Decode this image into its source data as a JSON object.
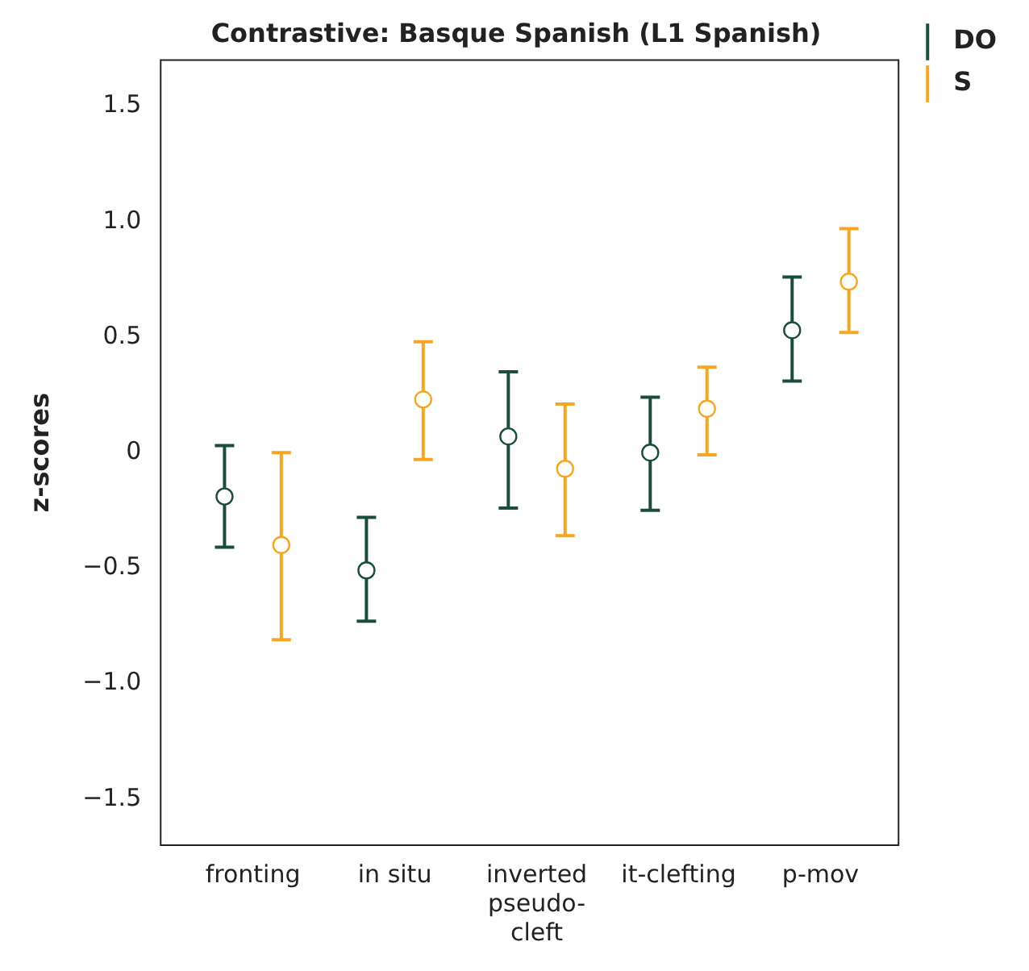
{
  "chart_data": {
    "type": "scatter",
    "title": "Contrastive: Basque Spanish (L1 Spanish)",
    "ylabel": "z-scores",
    "categories": [
      "fronting",
      "in situ",
      "inverted pseudo-cleft",
      "it-clefting",
      "p-mov"
    ],
    "series": [
      {
        "name": "DO",
        "color": "#1b4d3e",
        "values": [
          -0.19,
          -0.51,
          0.07,
          0.0,
          0.53
        ],
        "errors": [
          [
            -0.41,
            0.03
          ],
          [
            -0.73,
            -0.28
          ],
          [
            -0.24,
            0.35
          ],
          [
            -0.25,
            0.24
          ],
          [
            0.31,
            0.76
          ]
        ]
      },
      {
        "name": "S",
        "color": "#f5a623",
        "values": [
          -0.4,
          0.23,
          -0.07,
          0.19,
          0.74
        ],
        "errors": [
          [
            -0.81,
            0.0
          ],
          [
            -0.03,
            0.48
          ],
          [
            -0.36,
            0.21
          ],
          [
            -0.01,
            0.37
          ],
          [
            0.52,
            0.97
          ]
        ]
      }
    ],
    "ylim": [
      -1.7,
      1.7
    ],
    "yticks": [
      {
        "value": -1.5,
        "label": "−1.5"
      },
      {
        "value": -1,
        "label": "−1.0"
      },
      {
        "value": -0.5,
        "label": "−0.5"
      },
      0,
      0.5,
      {
        "value": 1,
        "label": "1.0"
      },
      1.5
    ],
    "grid": false,
    "legend": "top right",
    "marker": "circle"
  }
}
